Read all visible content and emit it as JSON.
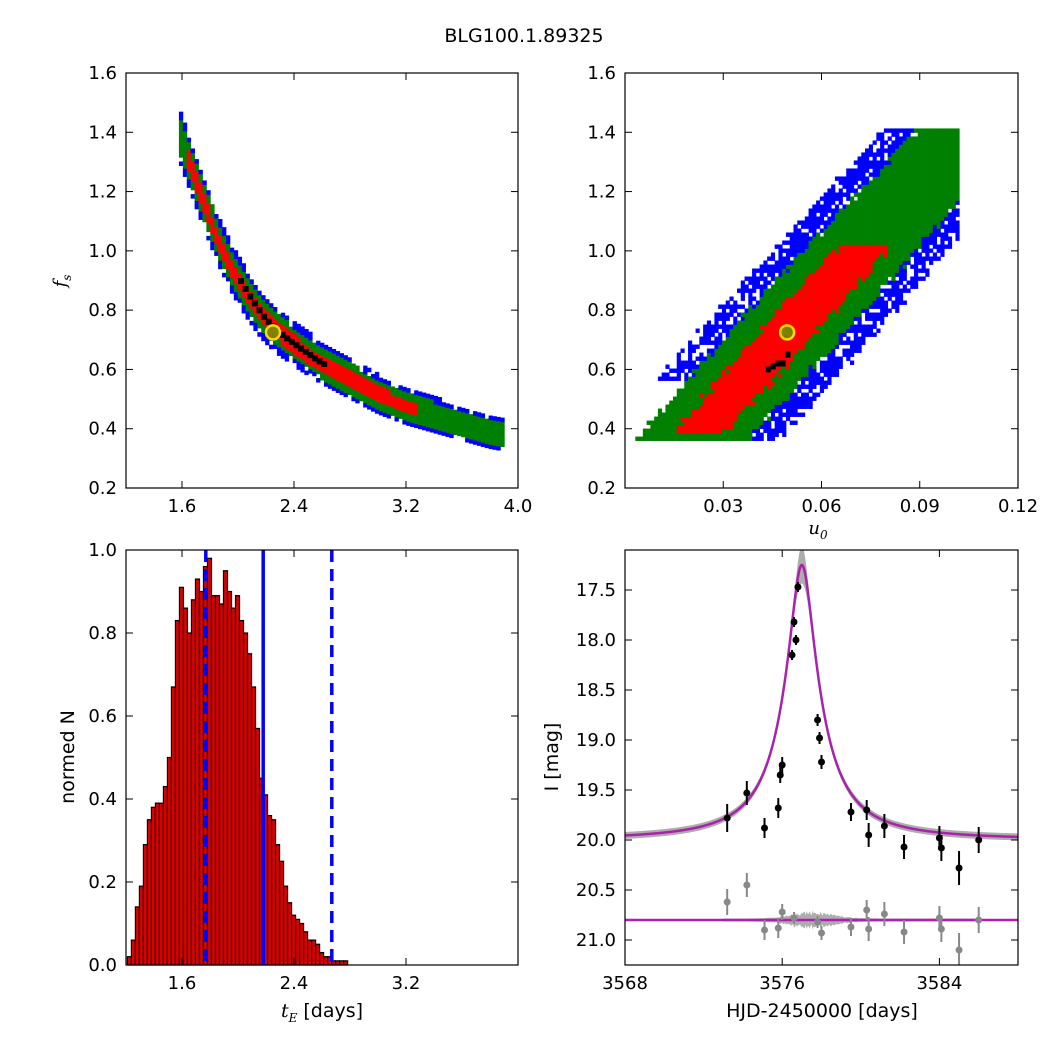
{
  "figure": {
    "title": "BLG100.1.89325"
  },
  "colors": {
    "sigma1": "#ff0000",
    "sigma2": "#008000",
    "sigma3": "#0000ff",
    "best": "#000000",
    "marker_fill": "#808000",
    "marker_edge": "#ffd700",
    "hist_fill": "#dd0000",
    "hist_line": "#0000ff",
    "model": "#aa22aa",
    "data": "#000000",
    "resid": "#888888"
  },
  "chart_data": [
    {
      "id": "fs_vs_tE",
      "type": "heatmap",
      "title": "",
      "xlabel": "",
      "ylabel": "f_s",
      "ylabel_main": "f",
      "ylabel_sub": "s",
      "xlim": [
        1.2,
        4.0
      ],
      "ylim": [
        0.2,
        1.6
      ],
      "xticks": [
        1.6,
        2.4,
        3.2,
        4.0
      ],
      "xtick_labels": [
        "1.6",
        "2.4",
        "3.2",
        "4.0"
      ],
      "yticks": [
        0.2,
        0.4,
        0.6,
        0.8,
        1.0,
        1.2,
        1.4,
        1.6
      ],
      "ytick_labels": [
        "0.2",
        "0.4",
        "0.6",
        "0.8",
        "1.0",
        "1.2",
        "1.4",
        "1.6"
      ],
      "ridge": [
        [
          1.57,
          1.4
        ],
        [
          1.66,
          1.28
        ],
        [
          1.76,
          1.15
        ],
        [
          1.86,
          1.03
        ],
        [
          1.96,
          0.93
        ],
        [
          2.06,
          0.85
        ],
        [
          2.16,
          0.78
        ],
        [
          2.26,
          0.73
        ],
        [
          2.4,
          0.68
        ],
        [
          2.55,
          0.63
        ],
        [
          2.7,
          0.59
        ],
        [
          2.85,
          0.55
        ],
        [
          3.0,
          0.51
        ],
        [
          3.2,
          0.47
        ],
        [
          3.4,
          0.44
        ],
        [
          3.6,
          0.41
        ],
        [
          3.8,
          0.38
        ],
        [
          3.9,
          0.37
        ]
      ],
      "best_fit": {
        "x": 2.25,
        "y": 0.725
      }
    },
    {
      "id": "fs_vs_u0",
      "type": "heatmap",
      "title": "",
      "xlabel": "u_0",
      "xlabel_main": "u",
      "xlabel_sub": "0",
      "ylabel": "",
      "xlim": [
        0.0,
        0.12
      ],
      "ylim": [
        0.2,
        1.6
      ],
      "xticks": [
        0.03,
        0.06,
        0.09,
        0.12
      ],
      "xtick_labels": [
        "0.03",
        "0.06",
        "0.09",
        "0.12"
      ],
      "yticks": [
        0.2,
        0.4,
        0.6,
        0.8,
        1.0,
        1.2,
        1.4,
        1.6
      ],
      "ytick_labels": [
        "0.2",
        "0.4",
        "0.6",
        "0.8",
        "1.0",
        "1.2",
        "1.4",
        "1.6"
      ],
      "slope": 12.5,
      "best_fit": {
        "x": 0.0495,
        "y": 0.725
      }
    },
    {
      "id": "tE_histogram",
      "type": "bar",
      "title": "",
      "xlabel_main": "t",
      "xlabel_sub": "E",
      "xlabel_rest": "[days]",
      "ylabel": "normed N",
      "xlim": [
        1.2,
        4.0
      ],
      "ylim": [
        0.0,
        1.0
      ],
      "xticks": [
        1.6,
        2.4,
        3.2
      ],
      "xtick_labels": [
        "1.6",
        "2.4",
        "3.2"
      ],
      "yticks": [
        0.0,
        0.2,
        0.4,
        0.6,
        0.8,
        1.0
      ],
      "ytick_labels": [
        "0.0",
        "0.2",
        "0.4",
        "0.6",
        "0.8",
        "1.0"
      ],
      "bin_start": 1.21,
      "bin_width": 0.0286,
      "values": [
        0.02,
        0.06,
        0.14,
        0.19,
        0.29,
        0.35,
        0.38,
        0.39,
        0.39,
        0.43,
        0.5,
        0.67,
        0.83,
        0.91,
        0.86,
        0.8,
        0.88,
        0.93,
        0.9,
        0.96,
        0.98,
        0.89,
        0.89,
        0.87,
        0.95,
        0.9,
        0.86,
        0.89,
        0.83,
        0.8,
        0.75,
        0.67,
        0.57,
        0.45,
        0.41,
        0.36,
        0.35,
        0.29,
        0.25,
        0.19,
        0.15,
        0.12,
        0.11,
        0.1,
        0.08,
        0.06,
        0.06,
        0.05,
        0.03,
        0.02,
        0.02,
        0.01,
        0.01,
        0.01,
        0.01,
        0.0,
        0.0,
        0.0
      ],
      "median": 2.18,
      "lower": 1.77,
      "upper": 2.67
    },
    {
      "id": "light_curve",
      "type": "scatter",
      "title": "",
      "xlabel": "HJD-2450000 [days]",
      "ylabel": "I [mag]",
      "xlim": [
        3568,
        3588
      ],
      "ylim": [
        21.25,
        17.1
      ],
      "xticks": [
        3568,
        3576,
        3584
      ],
      "xtick_labels": [
        "3568",
        "3576",
        "3584"
      ],
      "yticks": [
        17.5,
        18.0,
        18.5,
        19.0,
        19.5,
        20.0,
        20.5,
        21.0
      ],
      "ytick_labels": [
        "17.5",
        "18.0",
        "18.5",
        "19.0",
        "19.5",
        "20.0",
        "20.5",
        "21.0"
      ],
      "model": {
        "t0": 3577.0,
        "baseline": 20.0,
        "peak": 17.25,
        "width": 0.55,
        "resid_level": 20.8
      },
      "data": [
        [
          3573.2,
          19.78,
          0.14
        ],
        [
          3574.2,
          19.53,
          0.12
        ],
        [
          3575.1,
          19.88,
          0.1
        ],
        [
          3575.8,
          19.68,
          0.1
        ],
        [
          3575.9,
          19.35,
          0.08
        ],
        [
          3576.0,
          19.25,
          0.08
        ],
        [
          3576.5,
          18.15,
          0.05
        ],
        [
          3576.6,
          17.82,
          0.05
        ],
        [
          3576.7,
          18.0,
          0.05
        ],
        [
          3576.8,
          17.47,
          0.05
        ],
        [
          3577.8,
          18.8,
          0.06
        ],
        [
          3577.9,
          18.98,
          0.06
        ],
        [
          3578.0,
          19.22,
          0.07
        ],
        [
          3579.5,
          19.72,
          0.09
        ],
        [
          3580.3,
          19.7,
          0.1
        ],
        [
          3580.4,
          19.95,
          0.12
        ],
        [
          3581.2,
          19.86,
          0.12
        ],
        [
          3582.2,
          20.07,
          0.12
        ],
        [
          3584.0,
          19.98,
          0.12
        ],
        [
          3584.1,
          20.08,
          0.13
        ],
        [
          3585.0,
          20.28,
          0.17
        ],
        [
          3586.0,
          20.0,
          0.13
        ]
      ],
      "residuals": [
        [
          3573.2,
          20.62,
          0.13
        ],
        [
          3574.2,
          20.45,
          0.12
        ],
        [
          3575.1,
          20.9,
          0.1
        ],
        [
          3575.8,
          20.88,
          0.1
        ],
        [
          3576.0,
          20.72,
          0.08
        ],
        [
          3576.6,
          20.78,
          0.06
        ],
        [
          3577.8,
          20.82,
          0.06
        ],
        [
          3578.0,
          20.93,
          0.07
        ],
        [
          3579.5,
          20.87,
          0.09
        ],
        [
          3580.3,
          20.7,
          0.1
        ],
        [
          3580.4,
          20.89,
          0.12
        ],
        [
          3581.2,
          20.74,
          0.12
        ],
        [
          3582.2,
          20.92,
          0.12
        ],
        [
          3584.0,
          20.78,
          0.12
        ],
        [
          3584.1,
          20.89,
          0.13
        ],
        [
          3585.0,
          21.1,
          0.17
        ],
        [
          3586.0,
          20.8,
          0.13
        ]
      ]
    }
  ]
}
